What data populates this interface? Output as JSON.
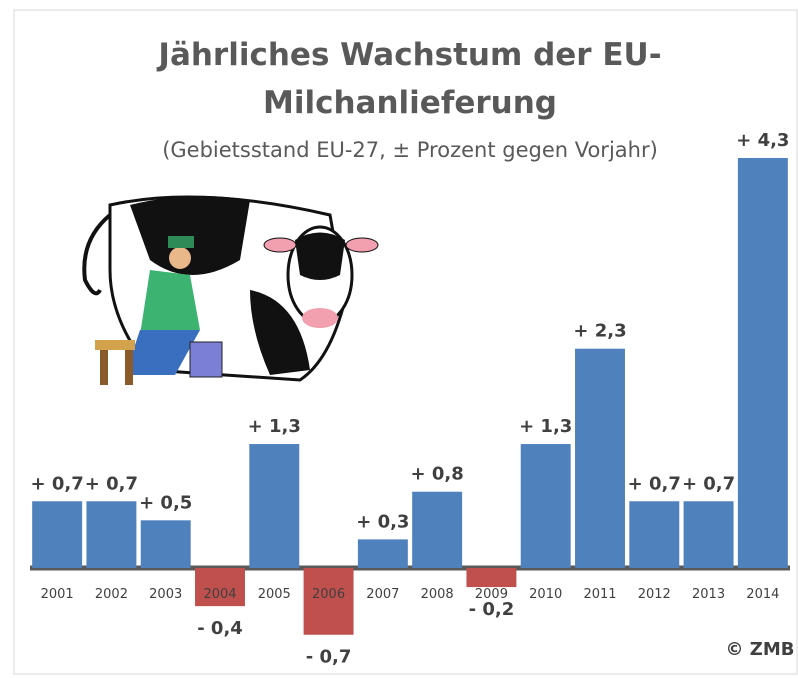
{
  "chart_data": {
    "type": "bar",
    "title": [
      "Jährliches Wachstum der EU-",
      "Milchanlieferung"
    ],
    "subtitle": "(Gebietsstand EU-27, ± Prozent gegen Vorjahr)",
    "categories": [
      "2001",
      "2002",
      "2003",
      "2004",
      "2005",
      "2006",
      "2007",
      "2008",
      "2009",
      "2010",
      "2011",
      "2012",
      "2013",
      "2014"
    ],
    "values": [
      0.7,
      0.7,
      0.5,
      -0.4,
      1.3,
      -0.7,
      0.3,
      0.8,
      -0.2,
      1.3,
      2.3,
      0.7,
      0.7,
      4.3
    ],
    "value_labels": [
      "+ 0,7",
      "+ 0,7",
      "+ 0,5",
      "- 0,4",
      "+ 1,3",
      "- 0,7",
      "+ 0,3",
      "+ 0,8",
      "- 0,2",
      "+ 1,3",
      "+ 2,3",
      "+ 0,7",
      "+ 0,7",
      "+ 4,3"
    ],
    "color": "#4f81bd",
    "negative_color": "#c0504d",
    "source": "© ZMB"
  }
}
